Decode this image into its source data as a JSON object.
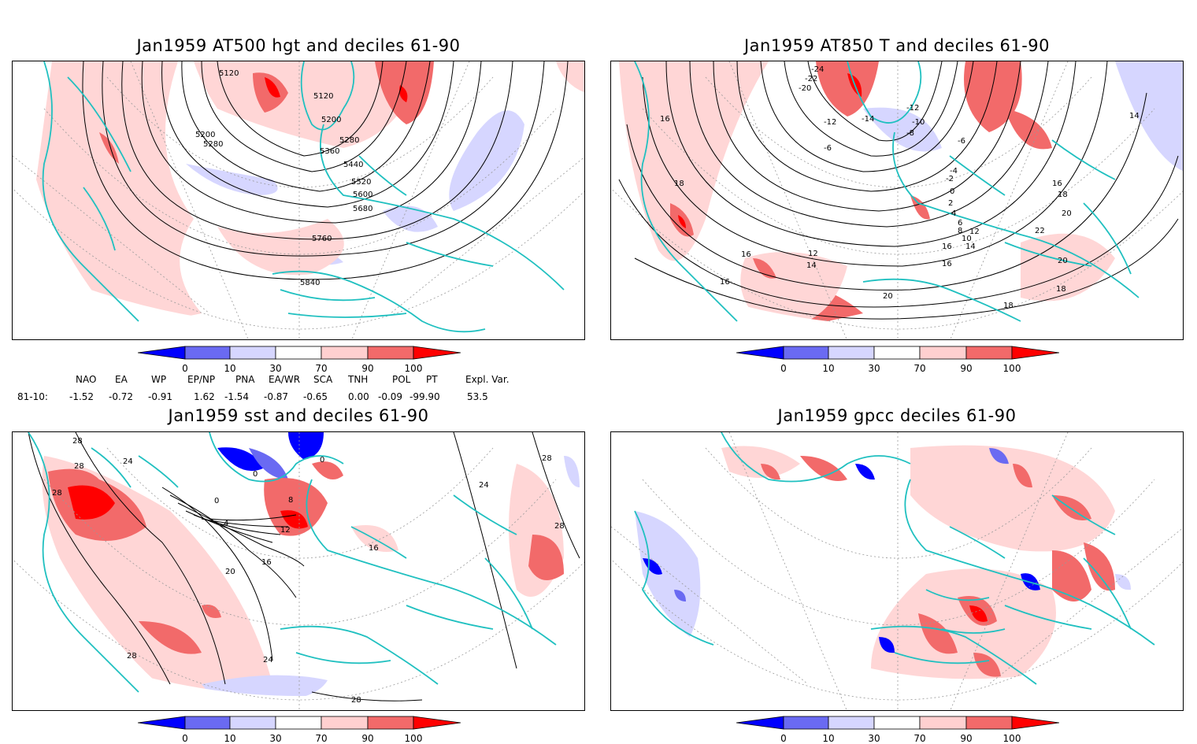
{
  "panels": {
    "tl": {
      "title": "Jan1959 AT500 hgt and deciles 61-90",
      "contour_labels": [
        "5120",
        "5120",
        "5200",
        "5200",
        "5280",
        "5280",
        "5360",
        "5440",
        "5520",
        "5600",
        "5680",
        "5760",
        "5840"
      ]
    },
    "tr": {
      "title": "Jan1959 AT850 T and deciles 61-90",
      "contour_labels": [
        "-24",
        "-22",
        "-20",
        "-12",
        "-14",
        "-12",
        "-10",
        "-8",
        "-6",
        "-6",
        "-4",
        "-2",
        "0",
        "2",
        "4",
        "6",
        "8",
        "10",
        "12",
        "14",
        "16",
        "16",
        "16",
        "16",
        "18",
        "18",
        "20",
        "20",
        "22",
        "20",
        "18",
        "18",
        "12",
        "14",
        "16",
        "16",
        "14"
      ]
    },
    "bl": {
      "title": "Jan1959 sst and deciles 61-90",
      "contour_labels": [
        "28",
        "28",
        "28",
        "24",
        "0",
        "0",
        "0",
        "4",
        "8",
        "12",
        "16",
        "16",
        "20",
        "24",
        "28",
        "28",
        "28",
        "24",
        "28"
      ]
    },
    "br": {
      "title": "Jan1959 gpcc deciles 61-90"
    }
  },
  "colorbar": {
    "tick_labels": [
      "0",
      "10",
      "30",
      "70",
      "90",
      "100"
    ],
    "colors": [
      "#0000ff",
      "#6a6af2",
      "#d6d6ff",
      "#ffffff",
      "#ffd0d0",
      "#f26a6a",
      "#ff0000"
    ]
  },
  "indices": {
    "headers": [
      "NAO",
      "EA",
      "WP",
      "EP/NP",
      "PNA",
      "EA/WR",
      "SCA",
      "TNH",
      "POL",
      "PT",
      "Expl. Var."
    ],
    "row_label": "81-10:",
    "values": [
      "-1.52",
      "-0.72",
      "-0.91",
      "1.62",
      "-1.54",
      "-0.87",
      "-0.65",
      "0.00",
      "-0.09",
      "-99.90",
      "53.5"
    ]
  },
  "colors": {
    "coast": "#20c0c0",
    "contour": "#000000",
    "grid": "#999999"
  }
}
